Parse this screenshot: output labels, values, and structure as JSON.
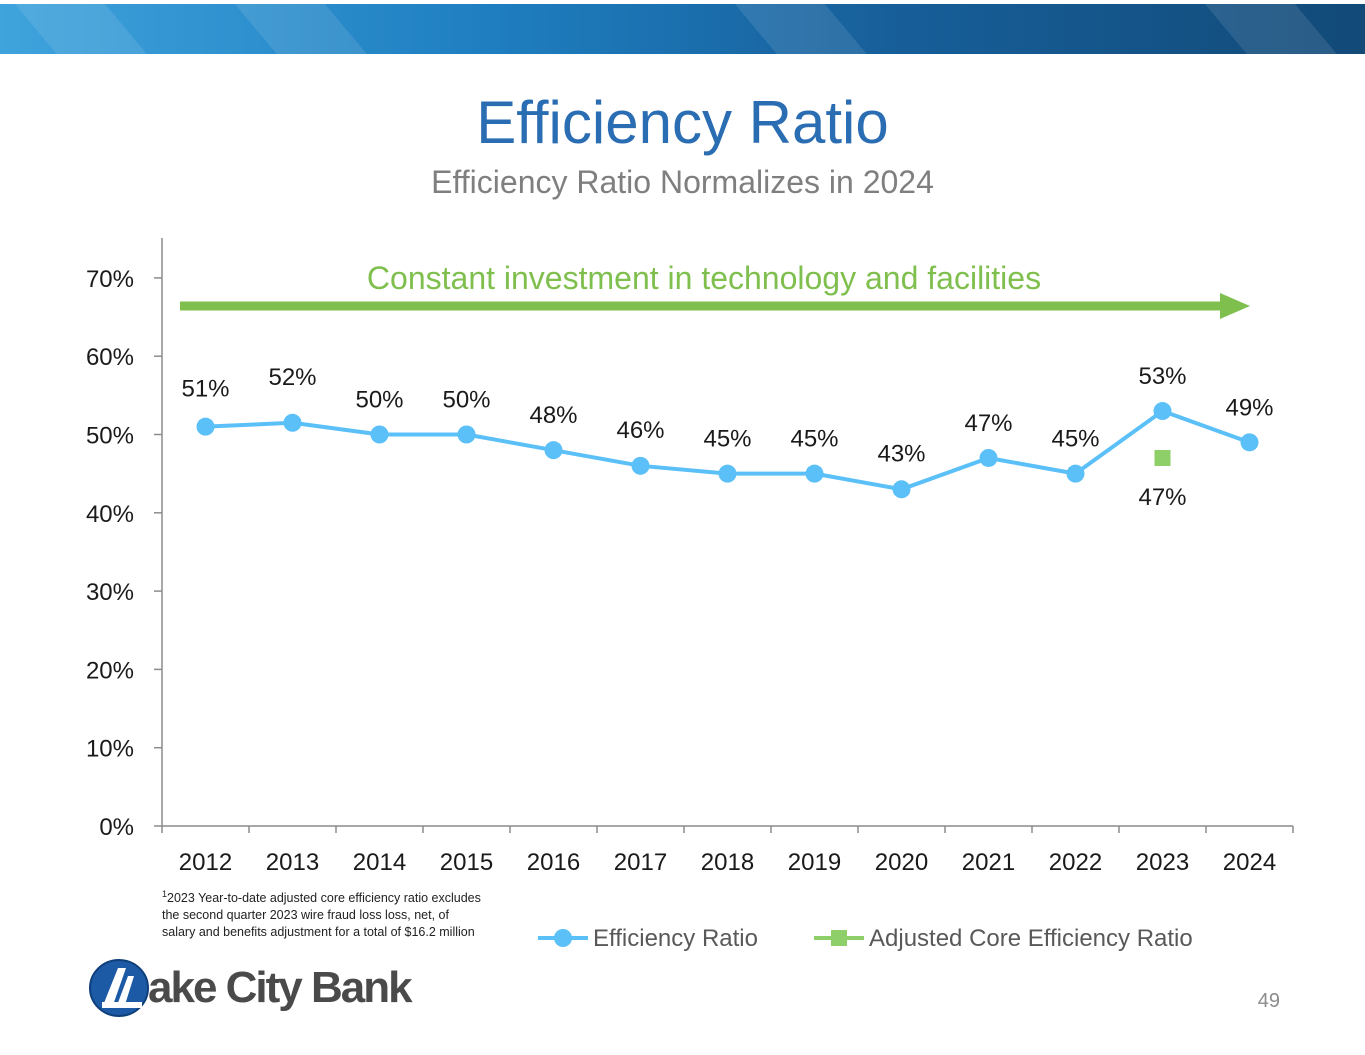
{
  "slide": {
    "title": "Efficiency Ratio",
    "subtitle": "Efficiency Ratio Normalizes in 2024",
    "footnote_marker": "1",
    "footnote": "2023 Year-to-date adjusted core efficiency ratio excludes the second quarter 2023 wire fraud loss loss, net, of salary and benefits adjustment for a total of $16.2 million",
    "logo_text": "ake City Bank",
    "page_number": "49"
  },
  "colors": {
    "title": "#2a6db3",
    "series_line": "#5bc0f8",
    "adjusted": "#8ecf6a",
    "arrow": "#7fbf4d",
    "axis": "#8c8c8c"
  },
  "chart_data": {
    "type": "line",
    "title": "",
    "xlabel": "",
    "ylabel": "",
    "categories": [
      "2012",
      "2013",
      "2014",
      "2015",
      "2016",
      "2017",
      "2018",
      "2019",
      "2020",
      "2021",
      "2022",
      "2023",
      "2024"
    ],
    "ylim": [
      0,
      75
    ],
    "yticks": [
      0,
      10,
      20,
      30,
      40,
      50,
      60,
      70
    ],
    "ytick_labels": [
      "0%",
      "10%",
      "20%",
      "30%",
      "40%",
      "50%",
      "60%",
      "70%"
    ],
    "grid": false,
    "legend_position": "bottom",
    "series": [
      {
        "name": "Efficiency Ratio",
        "marker": "circle",
        "values": [
          51,
          51.5,
          50,
          50,
          48,
          46,
          45,
          45,
          43,
          47,
          45,
          53,
          49
        ],
        "labels": [
          "51%",
          "52%",
          "50%",
          "50%",
          "48%",
          "46%",
          "45%",
          "45%",
          "43%",
          "47%",
          "45%",
          "53%",
          "49%"
        ]
      },
      {
        "name": "Adjusted Core Efficiency Ratio",
        "marker": "square",
        "points": [
          {
            "category": "2023",
            "value": 47,
            "label": "47%"
          }
        ]
      }
    ],
    "annotation": {
      "text": "Constant investment in technology and facilities",
      "style": "arrow spanning 2012 to 2024"
    }
  }
}
